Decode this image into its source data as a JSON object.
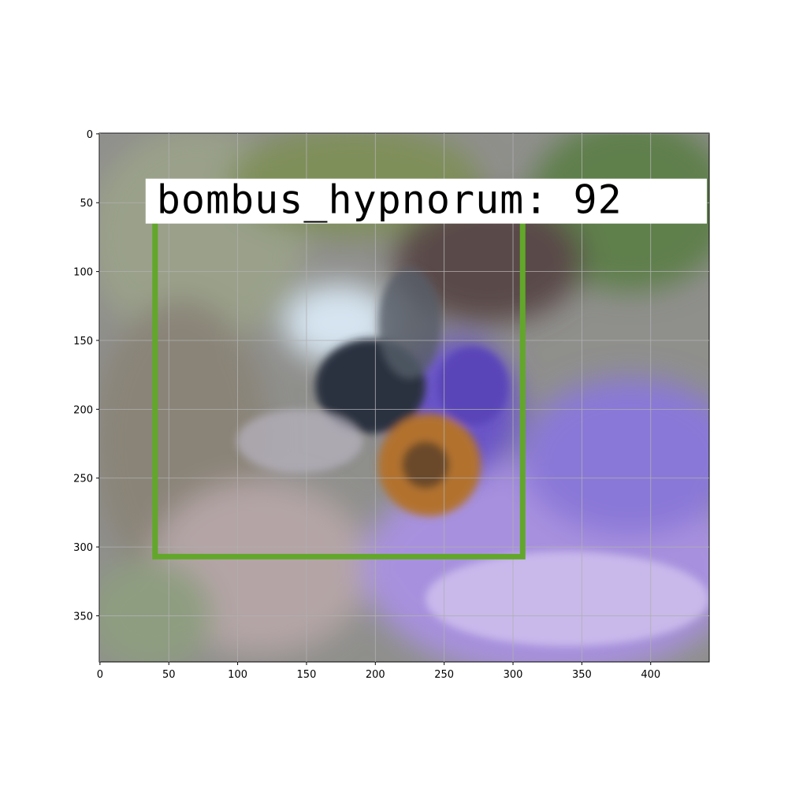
{
  "chart_data": {
    "type": "image",
    "xlim": [
      -0.5,
      442.5
    ],
    "ylim": [
      383.5,
      -0.5
    ],
    "xticks": [
      0,
      50,
      100,
      150,
      200,
      250,
      300,
      350,
      400
    ],
    "yticks": [
      0,
      50,
      100,
      150,
      200,
      250,
      300,
      350
    ],
    "grid": true,
    "box": {
      "x": [
        40,
        307
      ],
      "y": [
        60,
        307
      ],
      "color": "#62a72a",
      "label": "bombus_hypnorum: 92"
    }
  }
}
